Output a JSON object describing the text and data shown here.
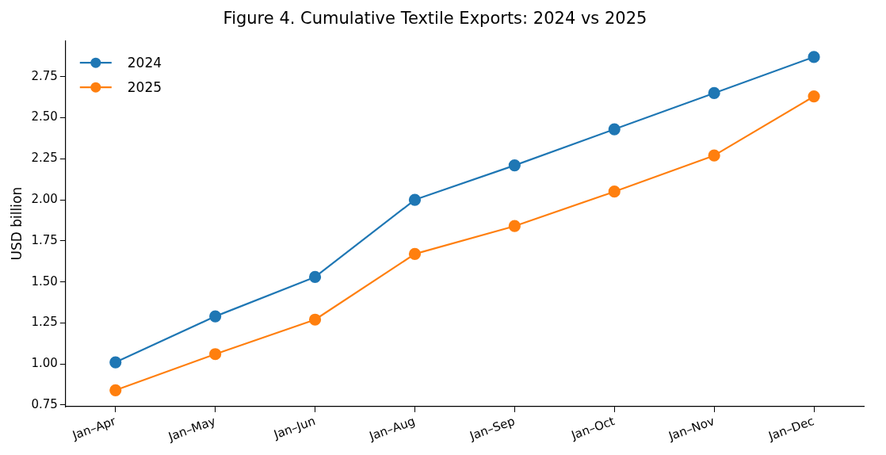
{
  "chart_data": {
    "type": "line",
    "title": "Figure 4. Cumulative Textile Exports: 2024 vs 2025",
    "ylabel": "USD billion",
    "categories": [
      "Jan–Apr",
      "Jan–May",
      "Jan–Jun",
      "Jan–Aug",
      "Jan–Sep",
      "Jan–Oct",
      "Jan–Nov",
      "Jan–Dec"
    ],
    "series": [
      {
        "name": "2024",
        "color": "#1f77b4",
        "values": [
          1.01,
          1.29,
          1.53,
          2.0,
          2.21,
          2.43,
          2.65,
          2.87
        ]
      },
      {
        "name": "2025",
        "color": "#ff7f0e",
        "values": [
          0.84,
          1.06,
          1.27,
          1.67,
          1.84,
          2.05,
          2.27,
          2.63
        ]
      }
    ],
    "ylim": [
      0.74,
      2.97
    ],
    "yticks": [
      {
        "value": 0.75,
        "label": "0.75"
      },
      {
        "value": 1.0,
        "label": "1.00"
      },
      {
        "value": 1.25,
        "label": "1.25"
      },
      {
        "value": 1.5,
        "label": "1.50"
      },
      {
        "value": 1.75,
        "label": "1.75"
      },
      {
        "value": 2.0,
        "label": "2.00"
      },
      {
        "value": 2.25,
        "label": "2.25"
      },
      {
        "value": 2.5,
        "label": "2.50"
      },
      {
        "value": 2.75,
        "label": "2.75"
      }
    ],
    "grid": false,
    "legend": "top left",
    "marker": "circle",
    "line_style": "solid"
  }
}
